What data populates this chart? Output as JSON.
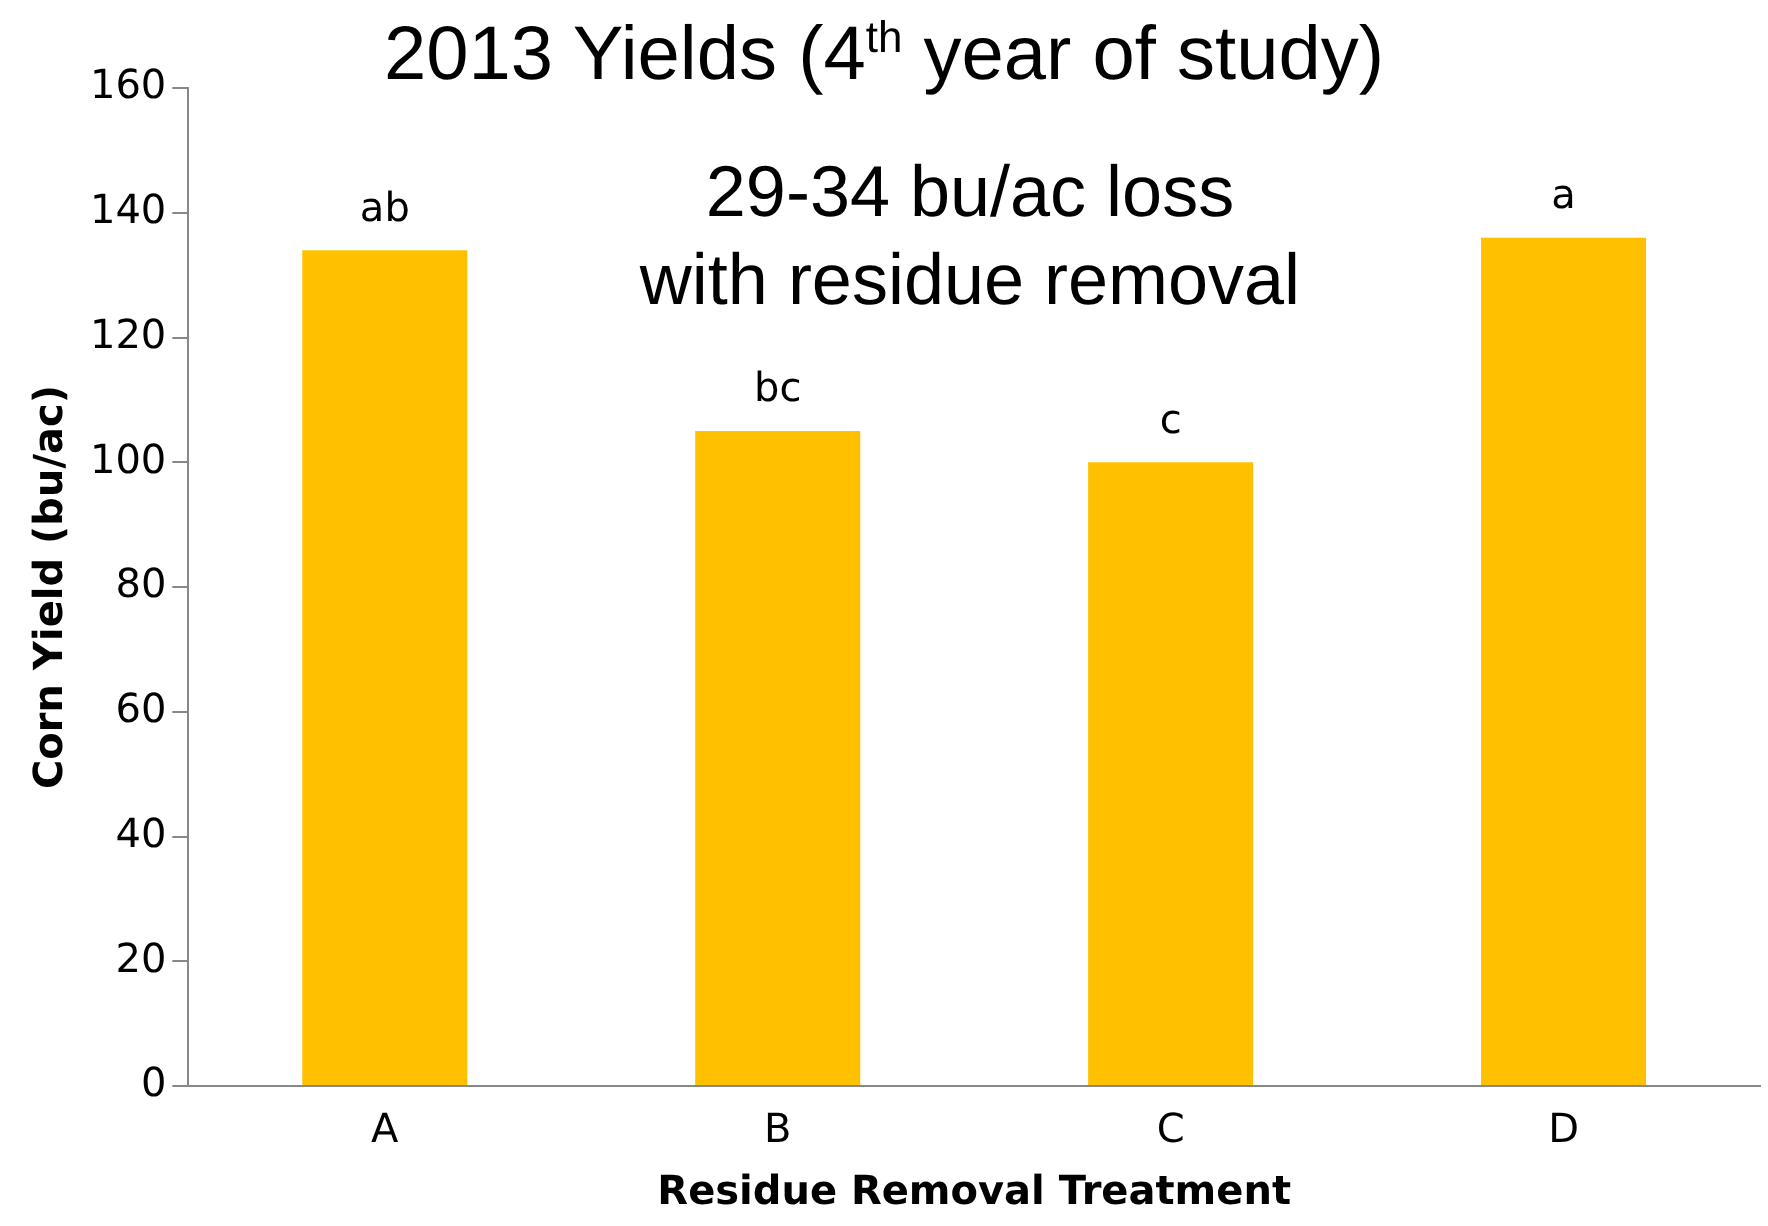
{
  "chart_data": {
    "type": "bar",
    "title": "2013 Yields (4$^{th}$ year of study)",
    "xlabel": "Residue Removal Treatment",
    "ylabel": "Corn Yield (bu/ac)",
    "categories": [
      "A",
      "B",
      "C",
      "D"
    ],
    "values": [
      134,
      105,
      100,
      136
    ],
    "color": "#ffc000",
    "ylim": [
      0,
      160
    ],
    "yticks": [
      0,
      20,
      40,
      60,
      80,
      100,
      120,
      140,
      160
    ],
    "grid": false,
    "legend": false,
    "annotations": [
      {
        "text": "ab",
        "x": "A",
        "y": 134
      },
      {
        "text": "bc",
        "x": "B",
        "y": 105
      },
      {
        "text": "c",
        "x": "C",
        "y": 100
      },
      {
        "text": "a",
        "x": "D",
        "y": 136
      },
      "29-34 bu/ac loss\nwith residue removal"
    ]
  }
}
